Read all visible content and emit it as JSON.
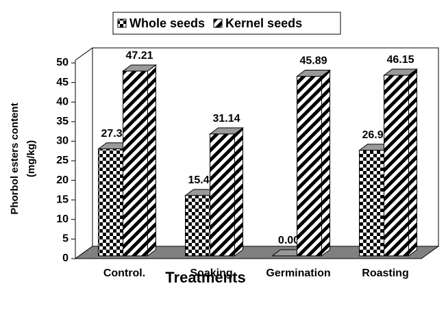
{
  "chart_data": {
    "type": "bar3d",
    "ylabel": [
      "Phorbol esters content",
      "(mg/kg)"
    ],
    "xlabel": "Treatments",
    "categories": [
      "Control.",
      "Soaking",
      "Germination",
      "Roasting"
    ],
    "series": [
      {
        "name": "Whole seeds",
        "pattern": "checker",
        "color": "#000000",
        "values": [
          27.32,
          15.41,
          0,
          26.97
        ],
        "value_labels": [
          "27.32",
          "15.41",
          "0.00",
          "26.97"
        ]
      },
      {
        "name": "Kernel seeds",
        "pattern": "stripes",
        "color": "#000000",
        "values": [
          47.21,
          31.14,
          45.89,
          46.15
        ],
        "value_labels": [
          "47.21",
          "31.14",
          "45.89",
          "46.15"
        ]
      }
    ],
    "ylim": [
      0,
      50
    ],
    "yticks": [
      0,
      5,
      10,
      15,
      20,
      25,
      30,
      35,
      40,
      45,
      50
    ],
    "legend": "top"
  }
}
